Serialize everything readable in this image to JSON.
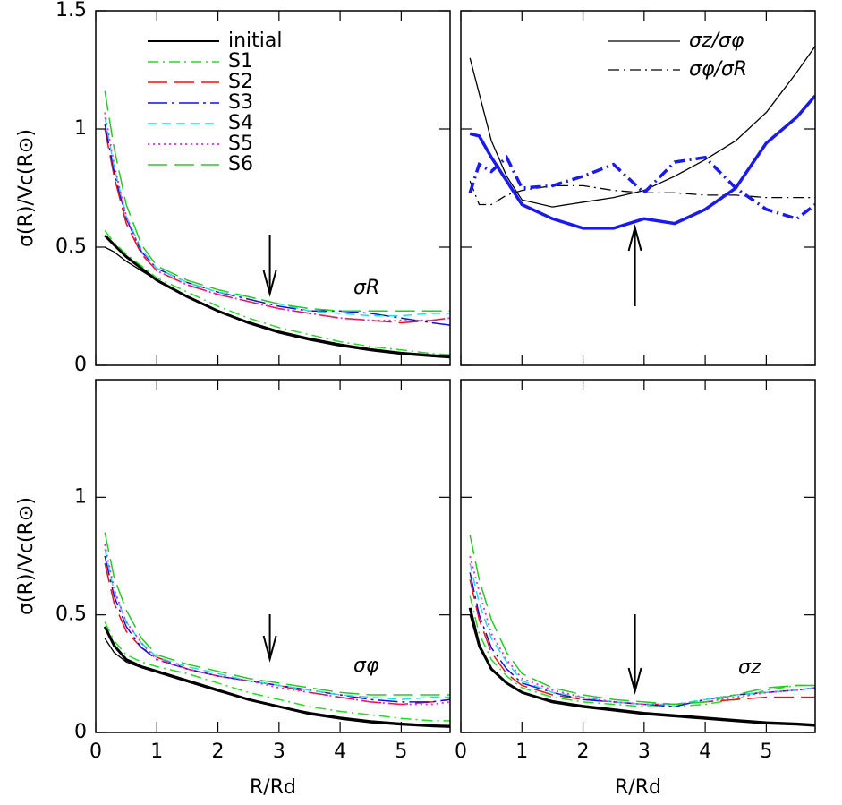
{
  "chart_data": [
    {
      "type": "line",
      "ylabel": "σ(R)/Vc(R⊙)",
      "annotation": "σR",
      "arrow_x": 2.85,
      "legend": "upper left",
      "show_xtick_labels": false,
      "show_ytick_labels": true,
      "xlim": [
        0,
        5.8
      ],
      "xticks": [
        0,
        1,
        2,
        3,
        4,
        5
      ],
      "ylim": [
        0,
        1.5
      ],
      "yticks": [
        0,
        0.5,
        1,
        1.5
      ],
      "x": [
        0.15,
        0.3,
        0.5,
        0.75,
        1,
        1.5,
        2,
        2.5,
        3,
        3.5,
        4,
        4.5,
        5,
        5.5,
        5.8
      ],
      "series": [
        {
          "name": "initial",
          "color": "#000000",
          "dash": "solid",
          "width": 3,
          "values": [
            0.55,
            0.51,
            0.46,
            0.41,
            0.36,
            0.29,
            0.23,
            0.18,
            0.14,
            0.11,
            0.085,
            0.065,
            0.05,
            0.04,
            0.035
          ]
        },
        {
          "color": "#000000",
          "dash": "solid",
          "width": 1.3,
          "values": [
            0.5,
            0.48,
            0.44,
            0.4,
            0.36,
            0.29,
            0.23,
            0.185,
            0.145,
            0.115,
            0.09,
            0.07,
            0.055,
            0.045,
            0.04
          ]
        },
        {
          "name": "S1",
          "color": "#22dd22",
          "dash": "dashdot",
          "width": 1.5,
          "values": [
            0.57,
            0.52,
            0.47,
            0.42,
            0.37,
            0.31,
            0.25,
            0.2,
            0.16,
            0.13,
            0.1,
            0.08,
            0.065,
            0.05,
            0.045
          ]
        },
        {
          "name": "S2",
          "color": "#ee1111",
          "dash": "longdash",
          "width": 1.5,
          "values": [
            1.0,
            0.8,
            0.6,
            0.47,
            0.4,
            0.34,
            0.3,
            0.27,
            0.24,
            0.22,
            0.2,
            0.19,
            0.18,
            0.19,
            0.2
          ]
        },
        {
          "name": "S3",
          "color": "#1111dd",
          "dash": "longdashdot",
          "width": 1.5,
          "values": [
            1.02,
            0.82,
            0.62,
            0.48,
            0.41,
            0.35,
            0.31,
            0.28,
            0.25,
            0.23,
            0.23,
            0.22,
            0.2,
            0.18,
            0.17
          ]
        },
        {
          "name": "S4",
          "color": "#22dddd",
          "dash": "dashed",
          "width": 1.5,
          "values": [
            1.05,
            0.84,
            0.63,
            0.49,
            0.41,
            0.35,
            0.31,
            0.29,
            0.26,
            0.23,
            0.22,
            0.21,
            0.21,
            0.22,
            0.22
          ]
        },
        {
          "name": "S5",
          "color": "#ee22ee",
          "dash": "dotted",
          "width": 1.8,
          "values": [
            1.07,
            0.85,
            0.63,
            0.48,
            0.4,
            0.34,
            0.3,
            0.27,
            0.24,
            0.22,
            0.2,
            0.19,
            0.19,
            0.19,
            0.2
          ]
        },
        {
          "name": "S6",
          "color": "#22cc22",
          "dash": "longdash",
          "width": 1.5,
          "values": [
            1.16,
            0.92,
            0.68,
            0.51,
            0.42,
            0.36,
            0.32,
            0.29,
            0.26,
            0.24,
            0.23,
            0.23,
            0.23,
            0.23,
            0.23
          ]
        }
      ]
    },
    {
      "type": "line",
      "arrow_x": 2.85,
      "legend": "upper right",
      "show_xtick_labels": false,
      "show_ytick_labels": false,
      "xlim": [
        0,
        5.8
      ],
      "xticks": [
        0,
        1,
        2,
        3,
        4,
        5
      ],
      "ylim": [
        0,
        1.5
      ],
      "yticks": [
        0,
        0.5,
        1,
        1.5
      ],
      "x": [
        0.15,
        0.3,
        0.5,
        0.75,
        1,
        1.5,
        2,
        2.5,
        3,
        3.5,
        4,
        4.5,
        5,
        5.5,
        5.8
      ],
      "series": [
        {
          "name": "σz/σφ",
          "color": "#000000",
          "dash": "solid",
          "width": 1.3,
          "values": [
            1.3,
            1.15,
            0.95,
            0.8,
            0.7,
            0.67,
            0.69,
            0.71,
            0.74,
            0.8,
            0.87,
            0.95,
            1.07,
            1.24,
            1.35
          ]
        },
        {
          "name": "σφ/σR",
          "color": "#000000",
          "dash": "dashdot",
          "width": 1.3,
          "values": [
            0.78,
            0.68,
            0.68,
            0.72,
            0.74,
            0.76,
            0.76,
            0.74,
            0.73,
            0.73,
            0.72,
            0.72,
            0.71,
            0.71,
            0.71
          ]
        },
        {
          "color": "#1a1aee",
          "dash": "solid",
          "width": 3.5,
          "values": [
            0.98,
            0.97,
            0.88,
            0.78,
            0.68,
            0.62,
            0.58,
            0.58,
            0.62,
            0.6,
            0.66,
            0.75,
            0.94,
            1.05,
            1.14
          ]
        },
        {
          "color": "#1a1aee",
          "dash": "dashdot",
          "width": 3.5,
          "values": [
            0.73,
            0.85,
            0.82,
            0.88,
            0.75,
            0.76,
            0.8,
            0.85,
            0.73,
            0.86,
            0.88,
            0.75,
            0.66,
            0.62,
            0.68
          ]
        }
      ]
    },
    {
      "type": "line",
      "ylabel": "σ(R)/Vc(R⊙)",
      "xlabel": "R/Rd",
      "annotation": "σφ",
      "arrow_x": 2.85,
      "show_xtick_labels": true,
      "show_ytick_labels": true,
      "xlim": [
        0,
        5.8
      ],
      "xticks": [
        0,
        1,
        2,
        3,
        4,
        5
      ],
      "ylim": [
        0,
        1.5
      ],
      "yticks": [
        0,
        0.5,
        1
      ],
      "x": [
        0.15,
        0.3,
        0.5,
        0.75,
        1,
        1.5,
        2,
        2.5,
        3,
        3.5,
        4,
        4.5,
        5,
        5.5,
        5.8
      ],
      "series": [
        {
          "color": "#000000",
          "dash": "solid",
          "width": 3,
          "values": [
            0.45,
            0.37,
            0.31,
            0.28,
            0.26,
            0.22,
            0.18,
            0.14,
            0.11,
            0.08,
            0.06,
            0.045,
            0.035,
            0.028,
            0.025
          ]
        },
        {
          "color": "#000000",
          "dash": "solid",
          "width": 1.3,
          "values": [
            0.4,
            0.34,
            0.3,
            0.275,
            0.255,
            0.215,
            0.175,
            0.14,
            0.11,
            0.085,
            0.065,
            0.05,
            0.04,
            0.032,
            0.03
          ]
        },
        {
          "color": "#22dd22",
          "dash": "dashdot",
          "width": 1.5,
          "values": [
            0.47,
            0.39,
            0.33,
            0.3,
            0.28,
            0.25,
            0.21,
            0.17,
            0.14,
            0.11,
            0.09,
            0.075,
            0.06,
            0.05,
            0.05
          ]
        },
        {
          "color": "#ee1111",
          "dash": "longdash",
          "width": 1.5,
          "values": [
            0.72,
            0.55,
            0.43,
            0.36,
            0.32,
            0.27,
            0.24,
            0.22,
            0.2,
            0.17,
            0.15,
            0.13,
            0.12,
            0.13,
            0.14
          ]
        },
        {
          "color": "#1111dd",
          "dash": "longdashdot",
          "width": 1.5,
          "values": [
            0.75,
            0.58,
            0.45,
            0.36,
            0.31,
            0.27,
            0.24,
            0.22,
            0.2,
            0.18,
            0.16,
            0.14,
            0.13,
            0.13,
            0.14
          ]
        },
        {
          "color": "#22dddd",
          "dash": "dashed",
          "width": 1.5,
          "values": [
            0.78,
            0.6,
            0.47,
            0.38,
            0.32,
            0.28,
            0.25,
            0.22,
            0.2,
            0.18,
            0.16,
            0.15,
            0.14,
            0.15,
            0.15
          ]
        },
        {
          "color": "#ee22ee",
          "dash": "dotted",
          "width": 1.8,
          "values": [
            0.8,
            0.61,
            0.47,
            0.38,
            0.31,
            0.27,
            0.24,
            0.22,
            0.19,
            0.17,
            0.15,
            0.13,
            0.12,
            0.12,
            0.13
          ]
        },
        {
          "color": "#22cc22",
          "dash": "longdash",
          "width": 1.5,
          "values": [
            0.85,
            0.66,
            0.52,
            0.4,
            0.33,
            0.29,
            0.26,
            0.23,
            0.21,
            0.19,
            0.17,
            0.16,
            0.16,
            0.16,
            0.16
          ]
        }
      ]
    },
    {
      "type": "line",
      "xlabel": "R/Rd",
      "annotation": "σz",
      "arrow_x": 2.85,
      "show_xtick_labels": true,
      "show_ytick_labels": false,
      "xlim": [
        0,
        5.8
      ],
      "xticks": [
        0,
        1,
        2,
        3,
        4,
        5
      ],
      "ylim": [
        0,
        1.5
      ],
      "yticks": [
        0,
        0.5,
        1
      ],
      "x": [
        0.15,
        0.3,
        0.5,
        0.75,
        1,
        1.5,
        2,
        2.5,
        3,
        3.5,
        4,
        4.5,
        5,
        5.5,
        5.8
      ],
      "series": [
        {
          "color": "#000000",
          "dash": "solid",
          "width": 3,
          "values": [
            0.53,
            0.37,
            0.27,
            0.21,
            0.17,
            0.13,
            0.11,
            0.095,
            0.08,
            0.07,
            0.06,
            0.05,
            0.04,
            0.035,
            0.03
          ]
        },
        {
          "color": "#000000",
          "dash": "solid",
          "width": 1.3,
          "values": [
            0.5,
            0.36,
            0.27,
            0.21,
            0.17,
            0.135,
            0.115,
            0.1,
            0.085,
            0.075,
            0.065,
            0.055,
            0.045,
            0.04,
            0.035
          ]
        },
        {
          "color": "#22dd22",
          "dash": "dashdot",
          "width": 1.5,
          "values": [
            0.58,
            0.42,
            0.31,
            0.24,
            0.19,
            0.15,
            0.13,
            0.12,
            0.11,
            0.11,
            0.12,
            0.14,
            0.18,
            0.2,
            0.2
          ]
        },
        {
          "color": "#ee1111",
          "dash": "longdash",
          "width": 1.5,
          "values": [
            0.65,
            0.48,
            0.34,
            0.25,
            0.2,
            0.16,
            0.14,
            0.13,
            0.12,
            0.12,
            0.13,
            0.14,
            0.15,
            0.15,
            0.15
          ]
        },
        {
          "color": "#1111dd",
          "dash": "longdashdot",
          "width": 1.5,
          "values": [
            0.68,
            0.5,
            0.36,
            0.27,
            0.21,
            0.17,
            0.14,
            0.13,
            0.12,
            0.11,
            0.14,
            0.16,
            0.17,
            0.18,
            0.19
          ]
        },
        {
          "color": "#22dddd",
          "dash": "dashed",
          "width": 1.5,
          "values": [
            0.72,
            0.55,
            0.4,
            0.3,
            0.22,
            0.17,
            0.15,
            0.13,
            0.12,
            0.12,
            0.14,
            0.16,
            0.17,
            0.18,
            0.19
          ]
        },
        {
          "color": "#ee22ee",
          "dash": "dotted",
          "width": 1.8,
          "values": [
            0.75,
            0.6,
            0.42,
            0.31,
            0.23,
            0.18,
            0.15,
            0.13,
            0.12,
            0.12,
            0.13,
            0.15,
            0.17,
            0.18,
            0.19
          ]
        },
        {
          "color": "#22cc22",
          "dash": "longdash",
          "width": 1.5,
          "values": [
            0.84,
            0.65,
            0.48,
            0.34,
            0.25,
            0.19,
            0.16,
            0.14,
            0.13,
            0.12,
            0.13,
            0.16,
            0.19,
            0.2,
            0.2
          ]
        }
      ]
    }
  ]
}
